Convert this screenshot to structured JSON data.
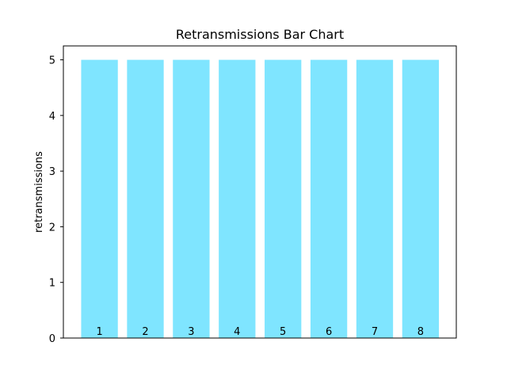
{
  "chart_data": {
    "type": "bar",
    "title": "Retransmissions Bar Chart",
    "xlabel": "",
    "ylabel": "retransmissions",
    "categories": [
      "1",
      "2",
      "3",
      "4",
      "5",
      "6",
      "7",
      "8"
    ],
    "values": [
      5,
      5,
      5,
      5,
      5,
      5,
      5,
      5
    ],
    "ylim": [
      0,
      5.25
    ],
    "yticks": [
      0,
      1,
      2,
      3,
      4,
      5
    ],
    "grid": false,
    "legend": "none",
    "bar_color": "#7fe5ff"
  }
}
